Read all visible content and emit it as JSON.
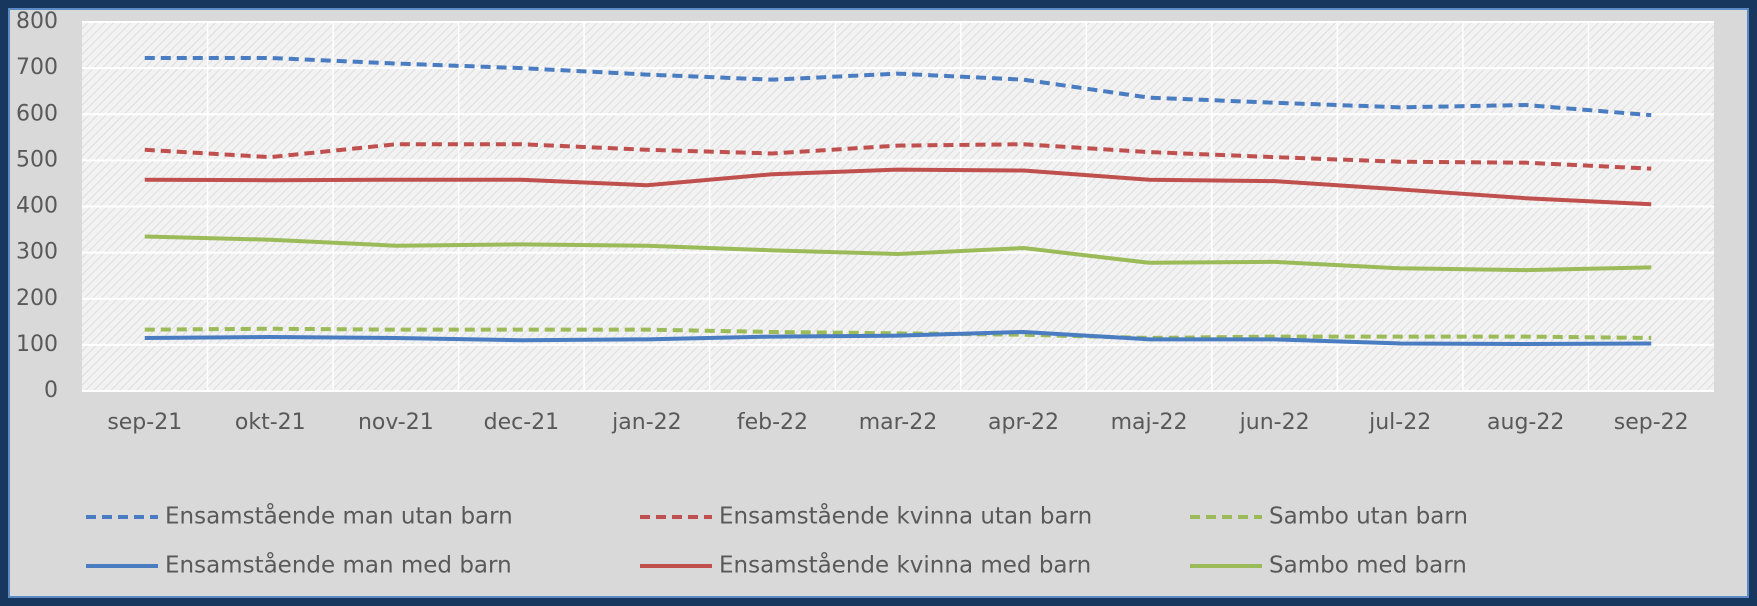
{
  "chart_data": {
    "type": "line",
    "categories": [
      "sep-21",
      "okt-21",
      "nov-21",
      "dec-21",
      "jan-22",
      "feb-22",
      "mar-22",
      "apr-22",
      "maj-22",
      "jun-22",
      "jul-22",
      "aug-22",
      "sep-22"
    ],
    "series": [
      {
        "name": "Ensamstående man utan barn",
        "color": "#4a7cc2",
        "dashed": true,
        "values": [
          722,
          722,
          710,
          700,
          686,
          675,
          688,
          675,
          636,
          625,
          615,
          620,
          598
        ]
      },
      {
        "name": "Ensamstående kvinna utan barn",
        "color": "#c0504d",
        "dashed": true,
        "values": [
          523,
          507,
          535,
          535,
          523,
          515,
          532,
          535,
          518,
          507,
          497,
          495,
          482
        ]
      },
      {
        "name": "Sambo utan barn",
        "color": "#9bbb59",
        "dashed": true,
        "values": [
          133,
          135,
          133,
          133,
          133,
          128,
          125,
          122,
          115,
          118,
          118,
          118,
          115
        ]
      },
      {
        "name": "Ensamstående man med barn",
        "color": "#4a7cc2",
        "dashed": false,
        "values": [
          115,
          117,
          115,
          110,
          112,
          118,
          120,
          128,
          112,
          112,
          103,
          102,
          103
        ]
      },
      {
        "name": "Ensamstående kvinna med barn",
        "color": "#c0504d",
        "dashed": false,
        "values": [
          458,
          457,
          458,
          458,
          446,
          470,
          480,
          478,
          458,
          455,
          437,
          418,
          405
        ]
      },
      {
        "name": "Sambo med barn",
        "color": "#9bbb59",
        "dashed": false,
        "values": [
          335,
          328,
          315,
          318,
          315,
          305,
          297,
          310,
          278,
          280,
          266,
          262,
          268
        ]
      }
    ],
    "ylim": [
      0,
      800
    ],
    "yticks": [
      0,
      100,
      200,
      300,
      400,
      500,
      600,
      700,
      800
    ],
    "grid": true,
    "legend": "bottom"
  }
}
